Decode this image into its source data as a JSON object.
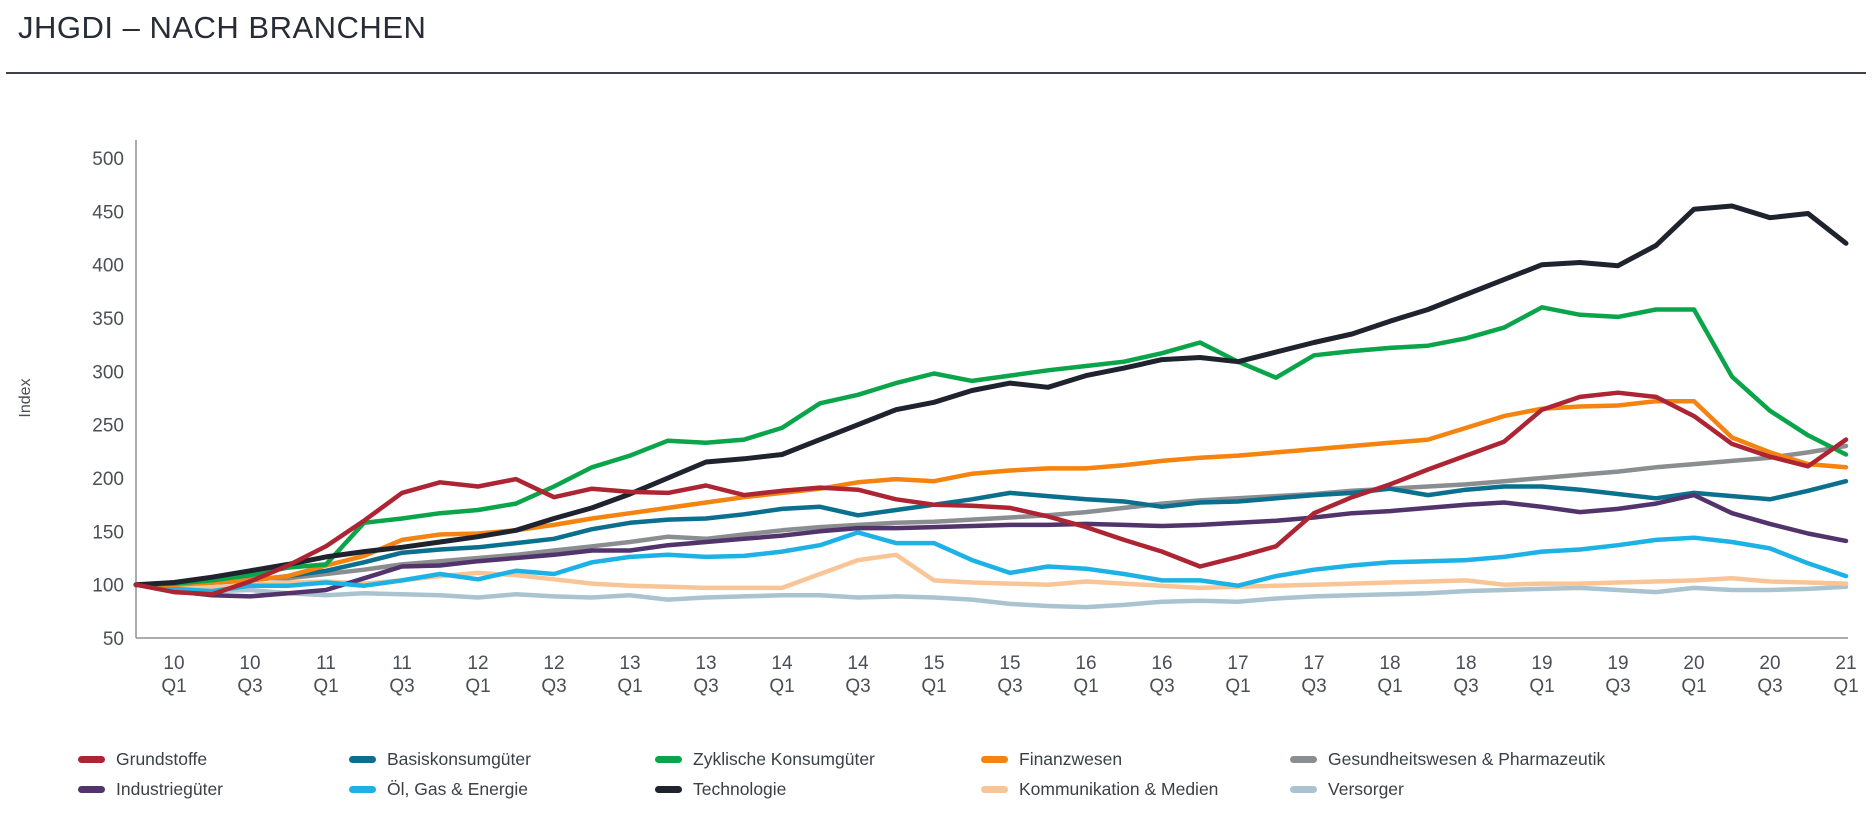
{
  "title": "JHGDI – NACH BRANCHEN",
  "chart_data": {
    "type": "line",
    "title": "JHGDI – NACH BRANCHEN",
    "ylabel": "Index",
    "ylim": [
      50,
      500
    ],
    "y_ticks": [
      500,
      450,
      400,
      350,
      300,
      250,
      200,
      150,
      100,
      50
    ],
    "grid": false,
    "legend_position": "bottom",
    "x_start_quarter": "09 Q4",
    "x_tick_labels": [
      [
        "10",
        "Q1"
      ],
      [
        "10",
        "Q3"
      ],
      [
        "11",
        "Q1"
      ],
      [
        "11",
        "Q3"
      ],
      [
        "12",
        "Q1"
      ],
      [
        "12",
        "Q3"
      ],
      [
        "13",
        "Q1"
      ],
      [
        "13",
        "Q3"
      ],
      [
        "14",
        "Q1"
      ],
      [
        "14",
        "Q3"
      ],
      [
        "15",
        "Q1"
      ],
      [
        "15",
        "Q3"
      ],
      [
        "16",
        "Q1"
      ],
      [
        "16",
        "Q3"
      ],
      [
        "17",
        "Q1"
      ],
      [
        "17",
        "Q3"
      ],
      [
        "18",
        "Q1"
      ],
      [
        "18",
        "Q3"
      ],
      [
        "19",
        "Q1"
      ],
      [
        "19",
        "Q3"
      ],
      [
        "20",
        "Q1"
      ],
      [
        "20",
        "Q3"
      ],
      [
        "21",
        "Q1"
      ]
    ],
    "series": [
      {
        "id": "versorger",
        "label": "Versorger",
        "color": "#a9c3d0",
        "values": [
          100,
          96,
          94,
          95,
          92,
          90,
          92,
          91,
          90,
          88,
          91,
          89,
          88,
          90,
          86,
          88,
          89,
          90,
          90,
          88,
          89,
          88,
          86,
          82,
          80,
          79,
          81,
          84,
          85,
          84,
          87,
          89,
          90,
          91,
          92,
          94,
          95,
          96,
          97,
          95,
          93,
          97,
          95,
          95,
          96,
          98
        ]
      },
      {
        "id": "kommunikation-medien",
        "label": "Kommunikation & Medien",
        "color": "#f9c597",
        "values": [
          100,
          99,
          98,
          100,
          102,
          103,
          101,
          104,
          108,
          111,
          109,
          105,
          101,
          99,
          98,
          97,
          97,
          97,
          110,
          123,
          128,
          104,
          102,
          101,
          100,
          103,
          101,
          99,
          97,
          98,
          99,
          100,
          101,
          102,
          103,
          104,
          100,
          101,
          101,
          102,
          103,
          104,
          106,
          103,
          102,
          101
        ]
      },
      {
        "id": "gesundheitswesen-pharmazeutik",
        "label": "Gesundheitswesen & Pharmazeutik",
        "color": "#8b8e90",
        "values": [
          100,
          102,
          104,
          106,
          106,
          110,
          114,
          119,
          122,
          125,
          128,
          132,
          136,
          140,
          145,
          143,
          147,
          151,
          154,
          156,
          158,
          159,
          161,
          163,
          165,
          168,
          172,
          176,
          179,
          181,
          183,
          185,
          188,
          190,
          192,
          194,
          197,
          200,
          203,
          206,
          210,
          213,
          216,
          219,
          224,
          230
        ]
      },
      {
        "id": "basiskonsumgueter",
        "label": "Basiskonsumgüter",
        "color": "#0b6f8e",
        "values": [
          100,
          101,
          102,
          104,
          108,
          113,
          121,
          130,
          133,
          135,
          139,
          143,
          152,
          158,
          161,
          162,
          166,
          171,
          173,
          165,
          170,
          175,
          180,
          186,
          183,
          180,
          178,
          173,
          177,
          178,
          181,
          184,
          186,
          190,
          184,
          189,
          192,
          192,
          189,
          185,
          181,
          186,
          183,
          180,
          188,
          197
        ]
      },
      {
        "id": "industrieguerter",
        "label": "Industriegüter",
        "color": "#52336b",
        "values": [
          100,
          94,
          90,
          89,
          92,
          95,
          106,
          117,
          118,
          122,
          125,
          128,
          132,
          132,
          137,
          140,
          143,
          146,
          150,
          153,
          153,
          154,
          155,
          156,
          156,
          157,
          156,
          155,
          156,
          158,
          160,
          163,
          167,
          169,
          172,
          175,
          177,
          173,
          168,
          171,
          176,
          184,
          167,
          157,
          148,
          141
        ]
      },
      {
        "id": "oel-gas-energie",
        "label": "Öl, Gas & Energie",
        "color": "#1cb2e5",
        "values": [
          100,
          96,
          94,
          99,
          99,
          102,
          99,
          104,
          110,
          105,
          113,
          110,
          121,
          126,
          128,
          126,
          127,
          131,
          137,
          149,
          139,
          139,
          123,
          111,
          117,
          115,
          110,
          104,
          104,
          99,
          108,
          114,
          118,
          121,
          122,
          123,
          126,
          131,
          133,
          137,
          142,
          144,
          140,
          134,
          120,
          108
        ]
      },
      {
        "id": "finanzwesen",
        "label": "Finanzwesen",
        "color": "#f5830f",
        "values": [
          100,
          100,
          102,
          104,
          108,
          118,
          127,
          142,
          147,
          148,
          151,
          156,
          162,
          167,
          172,
          177,
          182,
          186,
          190,
          196,
          199,
          197,
          204,
          207,
          209,
          209,
          212,
          216,
          219,
          221,
          224,
          227,
          230,
          233,
          236,
          247,
          258,
          265,
          267,
          268,
          272,
          272,
          238,
          224,
          213,
          210
        ]
      },
      {
        "id": "zyklische-konsumgueter",
        "label": "Zyklische Konsumgüter",
        "color": "#0aa54a",
        "values": [
          100,
          101,
          104,
          109,
          116,
          119,
          158,
          162,
          167,
          170,
          176,
          192,
          210,
          221,
          235,
          233,
          236,
          247,
          270,
          278,
          289,
          298,
          291,
          296,
          301,
          305,
          309,
          317,
          327,
          309,
          294,
          315,
          319,
          322,
          324,
          331,
          341,
          360,
          353,
          351,
          358,
          358,
          295,
          263,
          240,
          222
        ]
      },
      {
        "id": "technologie",
        "label": "Technologie",
        "color": "#1f232e",
        "values": [
          100,
          102,
          107,
          113,
          119,
          126,
          131,
          135,
          140,
          145,
          151,
          162,
          172,
          185,
          200,
          215,
          218,
          222,
          236,
          250,
          264,
          271,
          282,
          289,
          285,
          296,
          303,
          311,
          313,
          309,
          318,
          327,
          335,
          347,
          358,
          372,
          386,
          400,
          402,
          399,
          418,
          452,
          455,
          444,
          448,
          420
        ]
      },
      {
        "id": "grundstoffe",
        "label": "Grundstoffe",
        "color": "#ad2433",
        "values": [
          100,
          93,
          91,
          103,
          118,
          136,
          160,
          186,
          196,
          192,
          199,
          182,
          190,
          187,
          186,
          193,
          184,
          188,
          191,
          189,
          180,
          175,
          174,
          172,
          164,
          154,
          142,
          131,
          117,
          126,
          136,
          167,
          182,
          194,
          208,
          221,
          234,
          264,
          276,
          280,
          276,
          258,
          232,
          220,
          211,
          236
        ]
      }
    ],
    "legend_column_order": [
      "grundstoffe",
      "industrieguerter",
      "basiskonsumgueter",
      "oel-gas-energie",
      "zyklische-konsumgueter",
      "technologie",
      "finanzwesen",
      "kommunikation-medien",
      "gesundheitswesen-pharmazeutik",
      "versorger"
    ]
  }
}
